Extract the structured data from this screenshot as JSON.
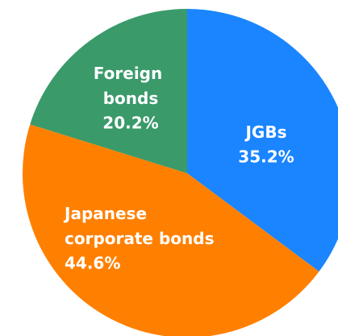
{
  "chart_data": {
    "type": "pie",
    "categories": [
      "JGBs",
      "Japanese corporate bonds",
      "Foreign bonds"
    ],
    "values": [
      35.2,
      44.6,
      20.2
    ],
    "value_labels": [
      "35.2%",
      "44.6%",
      "20.2%"
    ],
    "colors": [
      "#1a85ff",
      "#ff8000",
      "#3a9a6a"
    ]
  }
}
